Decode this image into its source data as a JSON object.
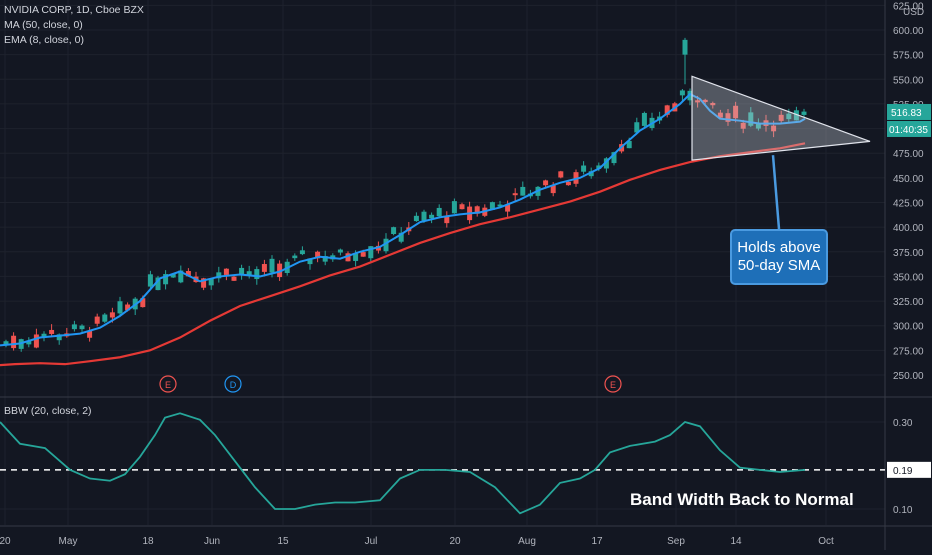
{
  "header": {
    "symbol_line": "NVIDIA CORP, 1D, Cboe BZX",
    "ma_line": "MA (50, close, 0)",
    "ema_line": "EMA (8, close, 0)",
    "currency": "USD"
  },
  "indicator_label": "BBW (20, close, 2)",
  "callout": {
    "line1": "Holds above",
    "line2": "50-day SMA"
  },
  "bbw_note": "Band Width Back to Normal",
  "price_badges": {
    "last_price": "516.83",
    "countdown": "01:40:35",
    "bbw_value": "0.19"
  },
  "events": [
    "E",
    "D",
    "E"
  ],
  "colors": {
    "background": "#131722",
    "grid": "#1e222d",
    "up": "#26a69a",
    "down": "#ef5350",
    "ema": "#2196f3",
    "sma": "#e53935",
    "bbw": "#26a69a",
    "callout": "#1e6fb8"
  },
  "chart_data": [
    {
      "type": "candlestick",
      "title": "NVIDIA CORP, 1D, Cboe BZX",
      "x_ticks": [
        "20",
        "May",
        "Jun",
        "Jul",
        "Aug",
        "Sep",
        "Oct",
        "18",
        "15",
        "20",
        "17",
        "14"
      ],
      "y_ticks": [
        250,
        275,
        300,
        325,
        350,
        375,
        400,
        425,
        450,
        475,
        500,
        525,
        550,
        575,
        600,
        625
      ],
      "ylim": [
        225,
        625
      ],
      "series": [
        {
          "name": "MA (50, close, 0)",
          "points": [
            [
              0,
              260
            ],
            [
              15,
              261
            ],
            [
              40,
              262
            ],
            [
              65,
              261
            ],
            [
              90,
              264
            ],
            [
              120,
              268
            ],
            [
              150,
              275
            ],
            [
              180,
              288
            ],
            [
              210,
              305
            ],
            [
              240,
              320
            ],
            [
              270,
              330
            ],
            [
              300,
              340
            ],
            [
              330,
              351
            ],
            [
              360,
              360
            ],
            [
              390,
              372
            ],
            [
              420,
              384
            ],
            [
              450,
              394
            ],
            [
              480,
              403
            ],
            [
              510,
              410
            ],
            [
              540,
              418
            ],
            [
              570,
              426
            ],
            [
              600,
              436
            ],
            [
              630,
              448
            ],
            [
              660,
              458
            ],
            [
              690,
              466
            ],
            [
              720,
              472
            ],
            [
              750,
              476
            ],
            [
              780,
              480
            ],
            [
              805,
              485
            ]
          ]
        },
        {
          "name": "EMA (8, close, 0)",
          "points": [
            [
              0,
              280
            ],
            [
              20,
              282
            ],
            [
              40,
              288
            ],
            [
              60,
              290
            ],
            [
              80,
              292
            ],
            [
              100,
              298
            ],
            [
              120,
              310
            ],
            [
              140,
              325
            ],
            [
              160,
              348
            ],
            [
              180,
              355
            ],
            [
              200,
              345
            ],
            [
              220,
              350
            ],
            [
              240,
              352
            ],
            [
              260,
              350
            ],
            [
              280,
              355
            ],
            [
              300,
              365
            ],
            [
              320,
              370
            ],
            [
              340,
              368
            ],
            [
              360,
              375
            ],
            [
              380,
              380
            ],
            [
              400,
              392
            ],
            [
              420,
              405
            ],
            [
              440,
              410
            ],
            [
              460,
              413
            ],
            [
              480,
              415
            ],
            [
              500,
              420
            ],
            [
              520,
              428
            ],
            [
              540,
              438
            ],
            [
              560,
              445
            ],
            [
              580,
              450
            ],
            [
              600,
              460
            ],
            [
              620,
              480
            ],
            [
              640,
              498
            ],
            [
              660,
              510
            ],
            [
              680,
              525
            ],
            [
              690,
              535
            ],
            [
              700,
              530
            ],
            [
              710,
              518
            ],
            [
              720,
              510
            ],
            [
              740,
              508
            ],
            [
              760,
              505
            ],
            [
              780,
              505
            ],
            [
              800,
              507
            ],
            [
              805,
              510
            ]
          ]
        }
      ],
      "annotations": [
        "Holds above 50-day SMA",
        "symmetrical triangle"
      ]
    },
    {
      "type": "line",
      "title": "BBW (20, close, 2)",
      "y_ticks": [
        0.1,
        0.19,
        0.3
      ],
      "ylim": [
        0.07,
        0.33
      ],
      "reference_line": 0.19,
      "series": [
        {
          "name": "BBW (20, close, 2)",
          "points": [
            [
              0,
              0.3
            ],
            [
              20,
              0.25
            ],
            [
              45,
              0.24
            ],
            [
              70,
              0.19
            ],
            [
              90,
              0.17
            ],
            [
              110,
              0.165
            ],
            [
              125,
              0.18
            ],
            [
              140,
              0.22
            ],
            [
              155,
              0.27
            ],
            [
              165,
              0.31
            ],
            [
              180,
              0.32
            ],
            [
              200,
              0.305
            ],
            [
              215,
              0.27
            ],
            [
              235,
              0.21
            ],
            [
              255,
              0.15
            ],
            [
              275,
              0.1
            ],
            [
              295,
              0.1
            ],
            [
              315,
              0.11
            ],
            [
              335,
              0.115
            ],
            [
              355,
              0.115
            ],
            [
              380,
              0.12
            ],
            [
              400,
              0.17
            ],
            [
              420,
              0.19
            ],
            [
              445,
              0.19
            ],
            [
              470,
              0.185
            ],
            [
              495,
              0.15
            ],
            [
              520,
              0.09
            ],
            [
              540,
              0.11
            ],
            [
              560,
              0.16
            ],
            [
              580,
              0.17
            ],
            [
              595,
              0.19
            ],
            [
              610,
              0.23
            ],
            [
              630,
              0.245
            ],
            [
              655,
              0.255
            ],
            [
              670,
              0.27
            ],
            [
              685,
              0.3
            ],
            [
              700,
              0.29
            ],
            [
              720,
              0.235
            ],
            [
              740,
              0.195
            ],
            [
              760,
              0.19
            ],
            [
              780,
              0.185
            ],
            [
              805,
              0.19
            ]
          ]
        }
      ],
      "annotations": [
        "Band Width Back to Normal"
      ]
    }
  ]
}
